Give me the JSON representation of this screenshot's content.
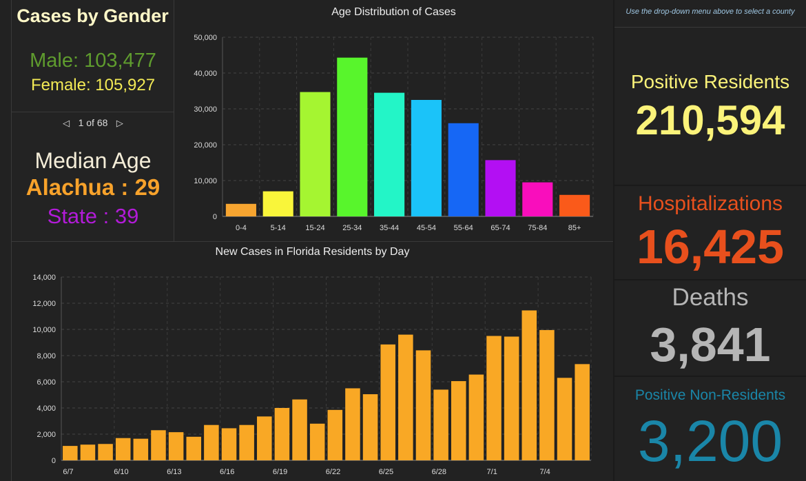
{
  "gender": {
    "title": "Cases by Gender",
    "male": "Male: 103,477",
    "female": "Female: 105,927"
  },
  "pager": {
    "text": "1 of 68"
  },
  "median": {
    "title": "Median Age",
    "county": "Alachua : 29",
    "state": "State : 39"
  },
  "hint": "Use the drop-down menu above to select a county",
  "stats": {
    "positive_residents_label": "Positive Residents",
    "positive_residents_value": "210,594",
    "hospitalizations_label": "Hospitalizations",
    "hospitalizations_value": "16,425",
    "deaths_label": "Deaths",
    "deaths_value": "3,841",
    "non_residents_label": "Positive Non-Residents",
    "non_residents_value": "3,200"
  },
  "colors": {
    "positive": "#fbf37a",
    "hospital": "#e8501d",
    "deaths": "#b5b5b5",
    "nonres": "#1a86a8",
    "daily_bar": "#f9a825"
  },
  "chart_data": [
    {
      "type": "bar",
      "title": "Age Distribution of Cases",
      "categories": [
        "0-4",
        "5-14",
        "15-24",
        "25-34",
        "35-44",
        "45-54",
        "55-64",
        "65-74",
        "75-84",
        "85+"
      ],
      "values": [
        3500,
        7000,
        34700,
        44300,
        34500,
        32500,
        26000,
        15700,
        9500,
        6000
      ],
      "colors": [
        "#f7a530",
        "#f9f53a",
        "#a5f531",
        "#58f52c",
        "#23f5c7",
        "#1bc3f9",
        "#1667f5",
        "#b30ff3",
        "#f90ebc",
        "#fa5a1a"
      ],
      "yticks": [
        "0",
        "10,000",
        "20,000",
        "30,000",
        "40,000",
        "50,000"
      ],
      "ylim": [
        0,
        50000
      ]
    },
    {
      "type": "bar",
      "title": "New Cases in Florida Residents by Day",
      "categories": [
        "6/7",
        "6/8",
        "6/9",
        "6/10",
        "6/11",
        "6/12",
        "6/13",
        "6/14",
        "6/15",
        "6/16",
        "6/17",
        "6/18",
        "6/19",
        "6/20",
        "6/21",
        "6/22",
        "6/23",
        "6/24",
        "6/25",
        "6/26",
        "6/27",
        "6/28",
        "6/29",
        "6/30",
        "7/1",
        "7/2",
        "7/3",
        "7/4",
        "7/5",
        "7/6"
      ],
      "values": [
        1100,
        1200,
        1250,
        1700,
        1650,
        2300,
        2150,
        1800,
        2700,
        2450,
        2700,
        3350,
        4000,
        4650,
        2800,
        3850,
        5500,
        5050,
        8850,
        9600,
        8400,
        5400,
        6050,
        6550,
        9500,
        9450,
        11450,
        9950,
        6300,
        7350
      ],
      "xtick_labels": [
        "6/7",
        "6/10",
        "6/13",
        "6/16",
        "6/19",
        "6/22",
        "6/25",
        "6/28",
        "7/1",
        "7/4"
      ],
      "yticks": [
        "0",
        "2,000",
        "4,000",
        "6,000",
        "8,000",
        "10,000",
        "12,000",
        "14,000"
      ],
      "ylim": [
        0,
        14000
      ]
    }
  ]
}
